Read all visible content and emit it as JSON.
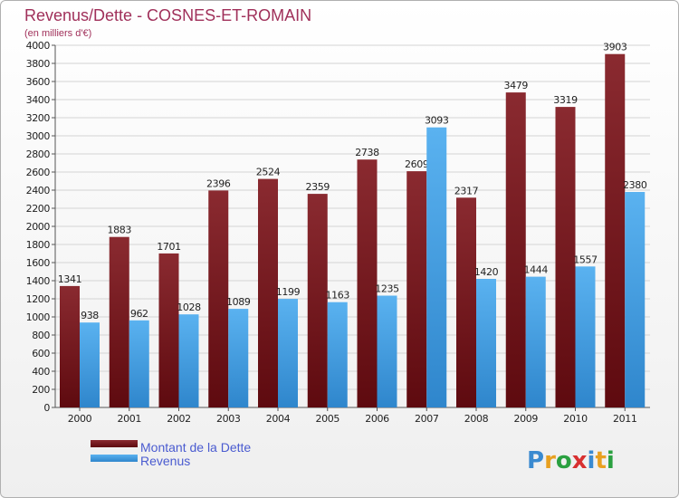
{
  "chart_data": {
    "type": "bar",
    "title": "Revenus/Dette - COSNES-ET-ROMAIN",
    "subtitle": "(en milliers d'€)",
    "categories": [
      "2000",
      "2001",
      "2002",
      "2003",
      "2004",
      "2005",
      "2006",
      "2007",
      "2008",
      "2009",
      "2010",
      "2011"
    ],
    "series": [
      {
        "name": "Montant de la Dette",
        "color": "#7a1a1f",
        "values": [
          1341,
          1883,
          1701,
          2396,
          2524,
          2359,
          2738,
          2609,
          2317,
          3479,
          3319,
          3903
        ]
      },
      {
        "name": "Revenus",
        "color": "#4aa3e8",
        "values": [
          938,
          962,
          1028,
          1089,
          1199,
          1163,
          1235,
          3093,
          1420,
          1444,
          1557,
          2380
        ]
      }
    ],
    "ylim": [
      0,
      4000
    ],
    "yticks": [
      0,
      200,
      400,
      600,
      800,
      1000,
      1200,
      1400,
      1600,
      1800,
      2000,
      2200,
      2400,
      2600,
      2800,
      3000,
      3200,
      3400,
      3600,
      3800,
      4000
    ],
    "grid": true,
    "legend_position": "bottom-left"
  },
  "logo_text": "Proxiti"
}
